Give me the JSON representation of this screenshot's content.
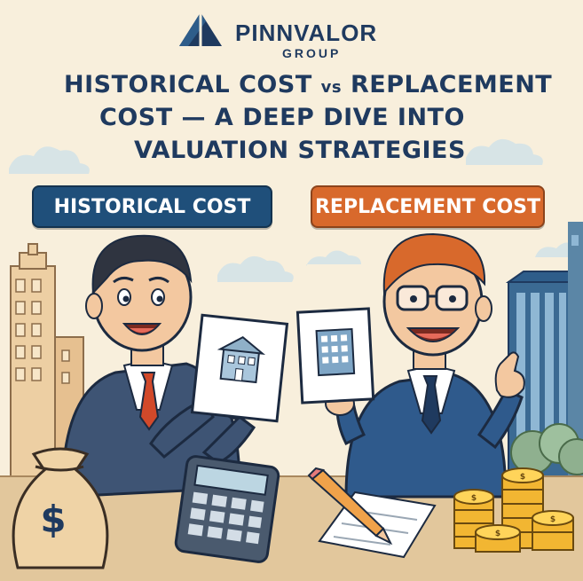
{
  "brand": {
    "name": "PINNVALOR",
    "subtitle": "GROUP"
  },
  "title": {
    "line1_a": "HISTORICAL COST ",
    "line1_vs": "vs",
    "line1_b": " REPLACEMENT",
    "line2": "COST — A DEEP DIVE INTO",
    "line3": "VALUATION STRATEGIES"
  },
  "labels": {
    "left": "HISTORICAL COST",
    "right": "REPLACEMENT COST"
  },
  "icons": {
    "logo": "mountain-logo-icon",
    "money_bag": "money-bag-icon",
    "dollar_sign": "$",
    "calculator": "calculator-icon",
    "pencil": "pencil-icon",
    "coins": "coin-stack-icon"
  },
  "colors": {
    "background": "#f8efdc",
    "navy": "#1f3a5f",
    "left_label": "#1f4f7a",
    "right_label": "#d8692c"
  }
}
